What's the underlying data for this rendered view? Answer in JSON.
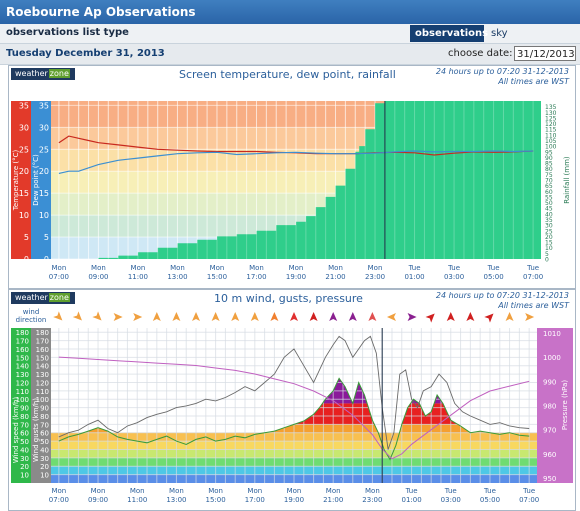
{
  "header": {
    "title": "Roebourne Ap Observations"
  },
  "subbar": {
    "label": "observations list type",
    "tabs": [
      "observations",
      "sky observations"
    ]
  },
  "datebar": {
    "date": "Tuesday December 31, 2013",
    "choose_label": "choose date:",
    "date_value": "31/12/2013"
  },
  "chart_data": [
    {
      "type": "line",
      "title": "Screen temperature, dew point, rainfall",
      "info": "24 hours up to 07:20 31-12-2013",
      "info2": "All times are WST",
      "logo": "weatherzone",
      "x_ticks": [
        {
          "t": 0,
          "l1": "Mon",
          "l2": "07:00"
        },
        {
          "t": 2,
          "l1": "Mon",
          "l2": "09:00"
        },
        {
          "t": 4,
          "l1": "Mon",
          "l2": "11:00"
        },
        {
          "t": 6,
          "l1": "Mon",
          "l2": "13:00"
        },
        {
          "t": 8,
          "l1": "Mon",
          "l2": "15:00"
        },
        {
          "t": 10,
          "l1": "Mon",
          "l2": "17:00"
        },
        {
          "t": 12,
          "l1": "Mon",
          "l2": "19:00"
        },
        {
          "t": 14,
          "l1": "Mon",
          "l2": "21:00"
        },
        {
          "t": 16,
          "l1": "Mon",
          "l2": "23:00"
        },
        {
          "t": 18,
          "l1": "Tue",
          "l2": "01:00"
        },
        {
          "t": 20,
          "l1": "Tue",
          "l2": "03:00"
        },
        {
          "t": 22,
          "l1": "Tue",
          "l2": "05:00"
        },
        {
          "t": 24,
          "l1": "Tue",
          "l2": "07:00"
        }
      ],
      "x_range": [
        -0.4,
        24.4
      ],
      "axes": {
        "temp": {
          "label": "Temperature (°C)",
          "range": [
            0,
            36
          ],
          "ticks": [
            0,
            5,
            10,
            15,
            20,
            25,
            30,
            35
          ]
        },
        "dew": {
          "label": "Dew point (°C)",
          "range": [
            0,
            36
          ],
          "ticks": [
            0,
            5,
            10,
            15,
            20,
            25,
            30,
            35
          ]
        },
        "rain": {
          "label": "Rainfall (mm)",
          "range": [
            0,
            140
          ],
          "ticks": [
            0,
            5,
            10,
            15,
            20,
            25,
            30,
            35,
            40,
            45,
            50,
            55,
            60,
            65,
            70,
            75,
            80,
            85,
            90,
            95,
            100,
            105,
            110,
            115,
            120,
            125,
            130,
            135
          ]
        }
      },
      "bands": [
        {
          "from": 0,
          "to": 5,
          "color": "#cfe8f5"
        },
        {
          "from": 5,
          "to": 10,
          "color": "#cde9d8"
        },
        {
          "from": 10,
          "to": 15,
          "color": "#e3efc8"
        },
        {
          "from": 15,
          "to": 20,
          "color": "#f7efb7"
        },
        {
          "from": 20,
          "to": 25,
          "color": "#fbe0a7"
        },
        {
          "from": 25,
          "to": 30,
          "color": "#fbc99b"
        },
        {
          "from": 30,
          "to": 36,
          "color": "#f8ae84"
        }
      ],
      "series": [
        {
          "key": "temperature",
          "color": "#c8281e",
          "x": [
            0,
            0.5,
            1,
            1.5,
            2,
            3,
            4,
            5,
            6,
            7,
            8,
            9,
            10,
            11,
            12,
            13,
            14,
            15,
            16,
            17,
            18,
            19,
            20,
            21,
            22,
            23,
            24
          ],
          "y": [
            26.5,
            28,
            27.5,
            27,
            26.5,
            26,
            25.5,
            25,
            24.8,
            24.6,
            24.5,
            24.5,
            24.5,
            24.3,
            24.2,
            24,
            24,
            24,
            24.2,
            24.3,
            24.2,
            23.7,
            24.1,
            24.4,
            24.3,
            24.4,
            24.6
          ]
        },
        {
          "key": "dew_point",
          "color": "#3c8fd1",
          "x": [
            0,
            0.5,
            1,
            2,
            3,
            4,
            5,
            6,
            7,
            8,
            9,
            10,
            11,
            12,
            13,
            14,
            15,
            16,
            17,
            18,
            19,
            20,
            21,
            22,
            23,
            24
          ],
          "y": [
            19.5,
            20,
            20,
            21.5,
            22.5,
            23,
            23.5,
            24,
            24.2,
            24.3,
            23.8,
            24,
            24.2,
            24.3,
            24.1,
            24,
            24,
            24.1,
            24.4,
            24.6,
            24.4,
            24.5,
            24.5,
            24.6,
            24.5,
            24.6
          ]
        }
      ],
      "rainfall": {
        "color": "#2fce8b",
        "x": [
          0,
          1,
          2,
          3,
          4,
          5,
          6,
          7,
          8,
          9,
          10,
          11,
          12,
          12.5,
          13,
          13.5,
          14,
          14.5,
          15,
          15.2,
          15.5,
          16,
          16.5,
          17,
          18,
          19,
          20,
          21,
          22,
          23,
          24
        ],
        "y": [
          0,
          0,
          1,
          3,
          6,
          10,
          14,
          17,
          20,
          22,
          25,
          30,
          33,
          38,
          46,
          55,
          65,
          80,
          95,
          100,
          115,
          138,
          140,
          140,
          140,
          140,
          140,
          140,
          140,
          140,
          140
        ]
      },
      "marker_x": 16.5
    },
    {
      "type": "line",
      "title": "10 m wind, gusts, pressure",
      "info": "24 hours up to 07:20 31-12-2013",
      "info2": "All times are WST",
      "logo": "weatherzone",
      "wind_direction_label": "wind direction",
      "wind_directions": [
        {
          "t": 0,
          "dir": "SE",
          "color": "#f0a040"
        },
        {
          "t": 1,
          "dir": "SE",
          "color": "#f0a040"
        },
        {
          "t": 2,
          "dir": "SE",
          "color": "#f0a040"
        },
        {
          "t": 3,
          "dir": "E",
          "color": "#f0a040"
        },
        {
          "t": 4,
          "dir": "E",
          "color": "#f0a040"
        },
        {
          "t": 5,
          "dir": "N",
          "color": "#f0a040"
        },
        {
          "t": 6,
          "dir": "N",
          "color": "#f0a040"
        },
        {
          "t": 7,
          "dir": "N",
          "color": "#f0a040"
        },
        {
          "t": 8,
          "dir": "N",
          "color": "#f0a040"
        },
        {
          "t": 9,
          "dir": "N",
          "color": "#f0a040"
        },
        {
          "t": 10,
          "dir": "N",
          "color": "#f0a040"
        },
        {
          "t": 11,
          "dir": "N",
          "color": "#f08030"
        },
        {
          "t": 12,
          "dir": "N",
          "color": "#e03030"
        },
        {
          "t": 13,
          "dir": "N",
          "color": "#d02020"
        },
        {
          "t": 14,
          "dir": "N",
          "color": "#8a2090"
        },
        {
          "t": 15,
          "dir": "N",
          "color": "#8a2090"
        },
        {
          "t": 16,
          "dir": "N",
          "color": "#e05050"
        },
        {
          "t": 17,
          "dir": "W",
          "color": "#f0a040"
        },
        {
          "t": 18,
          "dir": "E",
          "color": "#8a2090"
        },
        {
          "t": 19,
          "dir": "NE",
          "color": "#d02020"
        },
        {
          "t": 20,
          "dir": "N",
          "color": "#d02020"
        },
        {
          "t": 21,
          "dir": "N",
          "color": "#d02020"
        },
        {
          "t": 22,
          "dir": "NE",
          "color": "#d02020"
        },
        {
          "t": 23,
          "dir": "N",
          "color": "#f0a040"
        },
        {
          "t": 24,
          "dir": "E",
          "color": "#f0a040"
        }
      ],
      "x_ticks": [
        {
          "t": 0,
          "l1": "Mon",
          "l2": "07:00"
        },
        {
          "t": 2,
          "l1": "Mon",
          "l2": "09:00"
        },
        {
          "t": 4,
          "l1": "Mon",
          "l2": "11:00"
        },
        {
          "t": 6,
          "l1": "Mon",
          "l2": "13:00"
        },
        {
          "t": 8,
          "l1": "Mon",
          "l2": "15:00"
        },
        {
          "t": 10,
          "l1": "Mon",
          "l2": "17:00"
        },
        {
          "t": 12,
          "l1": "Mon",
          "l2": "19:00"
        },
        {
          "t": 14,
          "l1": "Mon",
          "l2": "21:00"
        },
        {
          "t": 16,
          "l1": "Mon",
          "l2": "23:00"
        },
        {
          "t": 18,
          "l1": "Tue",
          "l2": "01:00"
        },
        {
          "t": 20,
          "l1": "Tue",
          "l2": "03:00"
        },
        {
          "t": 22,
          "l1": "Tue",
          "l2": "05:00"
        },
        {
          "t": 24,
          "l1": "Tue",
          "l2": "07:00"
        }
      ],
      "x_range": [
        -0.4,
        24.4
      ],
      "axes": {
        "wind": {
          "label": "Wind speed (km/h)",
          "range": [
            0,
            185
          ],
          "ticks": [
            10,
            20,
            30,
            40,
            50,
            60,
            70,
            80,
            90,
            100,
            110,
            120,
            130,
            140,
            150,
            160,
            170,
            180
          ]
        },
        "gusts": {
          "label": "Wind gusts (km/h)",
          "range": [
            0,
            185
          ],
          "ticks": [
            10,
            20,
            30,
            40,
            50,
            60,
            70,
            80,
            90,
            100,
            110,
            120,
            130,
            140,
            150,
            160,
            170,
            180
          ]
        },
        "pressure": {
          "label": "Pressure (hPa)",
          "range": [
            948,
            1012
          ],
          "ticks": [
            950,
            960,
            970,
            980,
            990,
            1000,
            1010
          ]
        }
      },
      "bands": [
        {
          "from": 0,
          "to": 10,
          "color": "#5a8ee8"
        },
        {
          "from": 10,
          "to": 20,
          "color": "#4ec8e6"
        },
        {
          "from": 20,
          "to": 30,
          "color": "#6fdc72"
        },
        {
          "from": 30,
          "to": 40,
          "color": "#c8e870"
        },
        {
          "from": 40,
          "to": 50,
          "color": "#f8d860"
        },
        {
          "from": 50,
          "to": 60,
          "color": "#f8c050"
        }
      ],
      "wind_fill_colors": [
        {
          "from": 60,
          "to": 70,
          "color": "#f5a030"
        },
        {
          "from": 70,
          "to": 95,
          "color": "#e82020"
        },
        {
          "from": 95,
          "to": 185,
          "color": "#8a1a9a"
        }
      ],
      "wind_speed": {
        "color": "#3a9a3a",
        "x": [
          0,
          0.5,
          1,
          1.5,
          2,
          2.5,
          3,
          3.5,
          4,
          4.5,
          5,
          5.5,
          6,
          6.5,
          7,
          7.5,
          8,
          8.5,
          9,
          9.5,
          10,
          10.5,
          11,
          11.5,
          12,
          12.5,
          13,
          13.3,
          13.6,
          14,
          14.3,
          14.6,
          15,
          15.3,
          15.6,
          16,
          16.3,
          16.6,
          16.9,
          17.2,
          17.5,
          17.8,
          18.1,
          18.4,
          18.7,
          19,
          19.3,
          19.6,
          20,
          20.5,
          21,
          21.5,
          22,
          22.5,
          23,
          23.5,
          24
        ],
        "y": [
          50,
          55,
          58,
          62,
          66,
          62,
          55,
          52,
          50,
          48,
          52,
          56,
          50,
          46,
          52,
          55,
          50,
          52,
          56,
          54,
          58,
          60,
          62,
          66,
          70,
          74,
          82,
          90,
          100,
          110,
          125,
          115,
          95,
          120,
          105,
          75,
          60,
          40,
          28,
          45,
          70,
          90,
          100,
          95,
          80,
          85,
          105,
          95,
          75,
          68,
          60,
          62,
          60,
          58,
          60,
          57,
          56
        ]
      },
      "gusts": {
        "color": "#6a6a6a",
        "x": [
          0,
          0.5,
          1,
          1.5,
          2,
          2.5,
          3,
          3.5,
          4,
          4.5,
          5,
          5.5,
          6,
          6.5,
          7,
          7.5,
          8,
          8.5,
          9,
          9.5,
          10,
          10.5,
          11,
          11.5,
          12,
          12.5,
          13,
          13.3,
          13.6,
          14,
          14.3,
          14.6,
          15,
          15.3,
          15.6,
          15.9,
          16.2,
          16.5,
          16.8,
          17.1,
          17.4,
          17.7,
          18,
          18.3,
          18.6,
          19,
          19.4,
          19.8,
          20.2,
          20.6,
          21,
          21.5,
          22,
          22.5,
          23,
          23.5,
          24
        ],
        "y": [
          55,
          60,
          63,
          70,
          75,
          65,
          60,
          68,
          72,
          78,
          82,
          85,
          90,
          92,
          95,
          100,
          98,
          102,
          108,
          115,
          110,
          120,
          130,
          150,
          160,
          140,
          120,
          135,
          150,
          165,
          175,
          170,
          150,
          160,
          170,
          175,
          155,
          90,
          40,
          60,
          130,
          135,
          100,
          90,
          110,
          115,
          130,
          120,
          95,
          85,
          80,
          75,
          70,
          72,
          68,
          66,
          65
        ]
      },
      "pressure": {
        "color": "#c060c0",
        "x": [
          0,
          1,
          2,
          3,
          4,
          5,
          6,
          7,
          8,
          9,
          10,
          11,
          12,
          13,
          14,
          15,
          16,
          16.5,
          17,
          17.5,
          18,
          19,
          20,
          21,
          22,
          23,
          24
        ],
        "y": [
          1000,
          999.5,
          999,
          998.5,
          998,
          997.5,
          997,
          996.5,
          995.5,
          994.5,
          993,
          991,
          989,
          986,
          982,
          976,
          968,
          962,
          958,
          960,
          964,
          970,
          976,
          982,
          986,
          988,
          990
        ]
      },
      "marker_x": 16.5
    }
  ]
}
